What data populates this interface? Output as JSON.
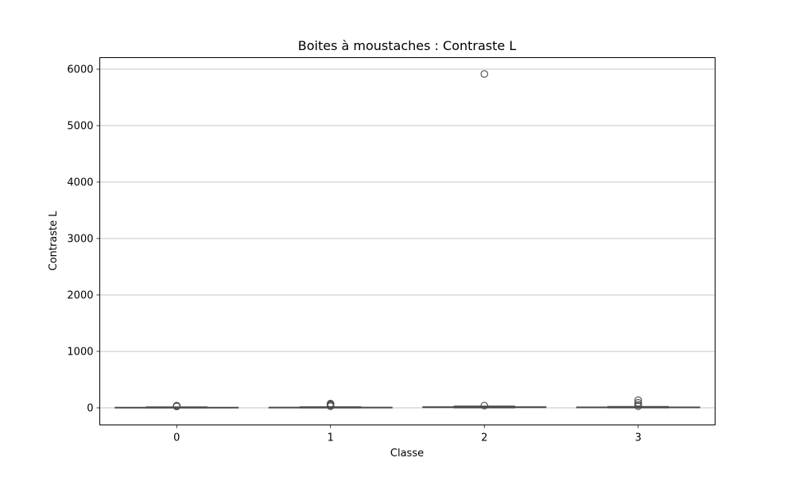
{
  "chart_data": {
    "type": "box",
    "title": "Boites à moustaches : Contraste L",
    "xlabel": "Classe",
    "ylabel": "Contraste L",
    "categories": [
      "0",
      "1",
      "2",
      "3"
    ],
    "ylim": [
      -300,
      6200
    ],
    "yticks": [
      0,
      1000,
      2000,
      3000,
      4000,
      5000,
      6000
    ],
    "grid": "horizontal",
    "legend": "none",
    "box_color": "#4a4a4a",
    "series": [
      {
        "category": "0",
        "whislo": 0,
        "q1": 3,
        "median": 5,
        "q3": 9,
        "whishi": 16,
        "outliers": [
          25,
          32,
          38
        ]
      },
      {
        "category": "1",
        "whislo": 0,
        "q1": 3,
        "median": 6,
        "q3": 10,
        "whishi": 18,
        "outliers": [
          28,
          45,
          60,
          75
        ]
      },
      {
        "category": "2",
        "whislo": 0,
        "q1": 5,
        "median": 10,
        "q3": 18,
        "whishi": 30,
        "outliers": [
          38,
          5915
        ]
      },
      {
        "category": "3",
        "whislo": 0,
        "q1": 4,
        "median": 8,
        "q3": 14,
        "whishi": 24,
        "outliers": [
          30,
          55,
          90,
          135
        ]
      }
    ]
  }
}
